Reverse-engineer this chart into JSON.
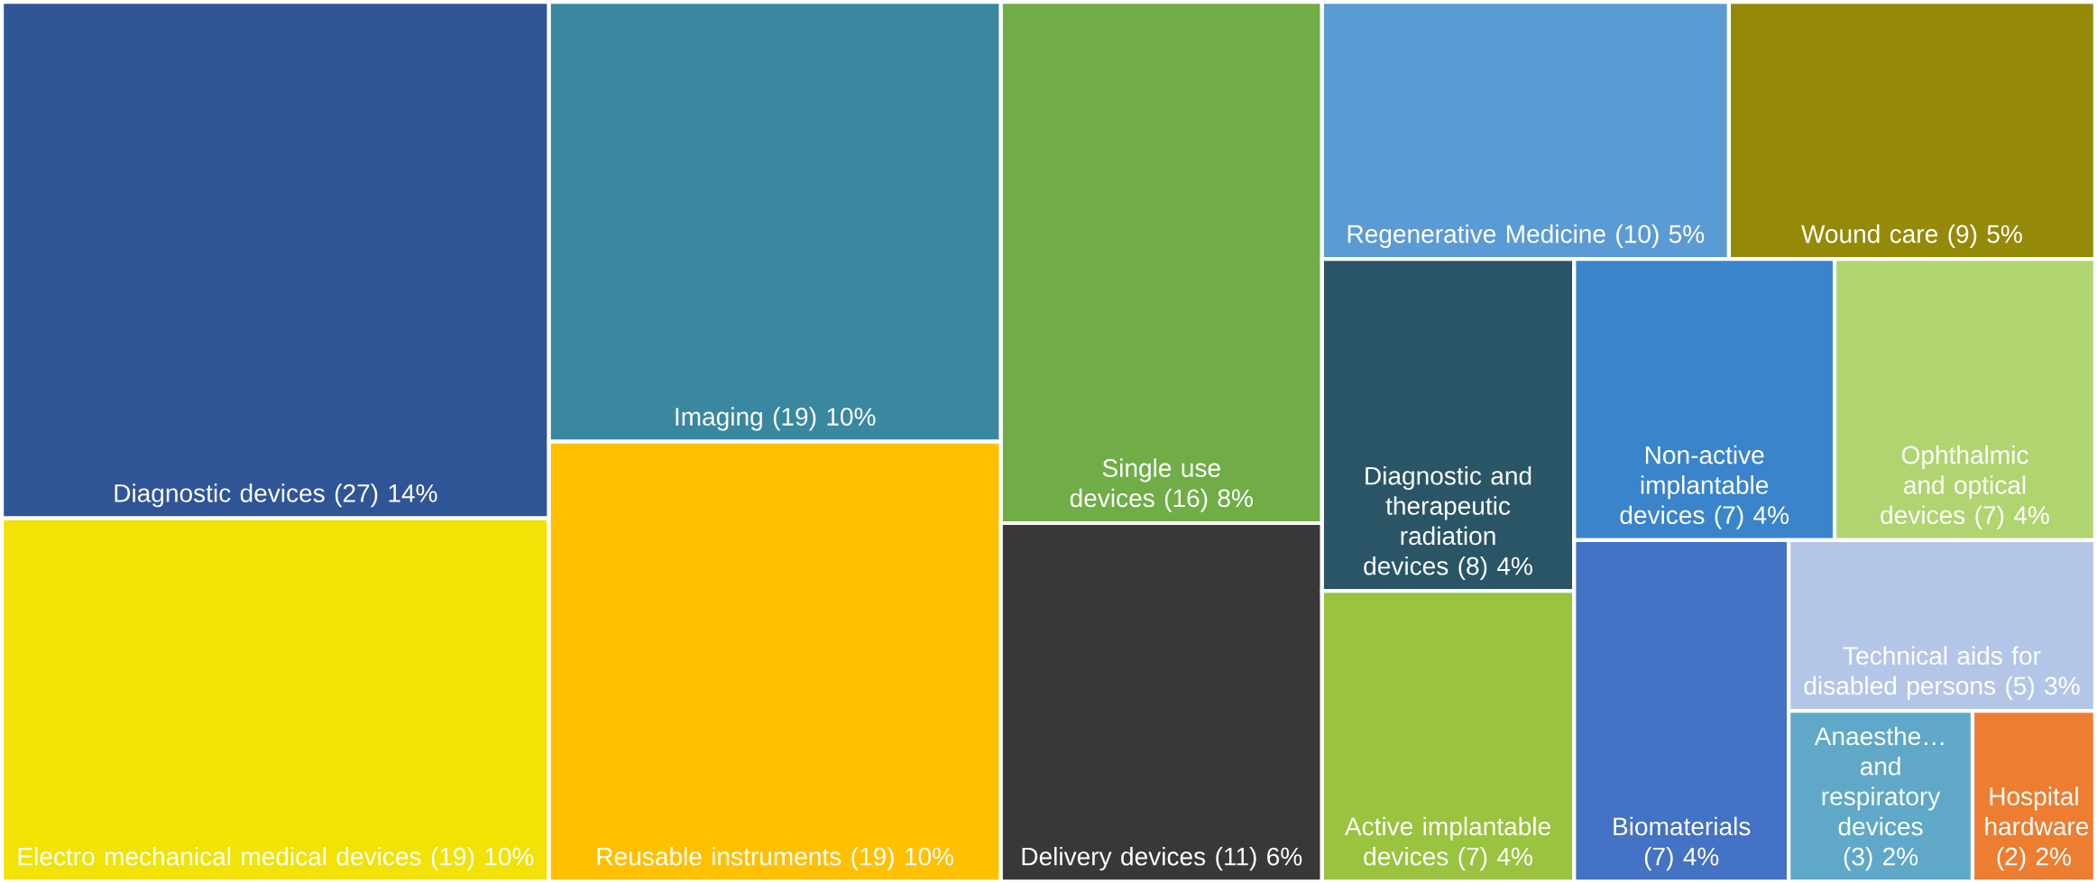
{
  "chart_data": {
    "type": "other",
    "categories": [
      "Diagnostic devices",
      "Electro mechanical medical devices",
      "Imaging",
      "Reusable instruments",
      "Single use devices",
      "Delivery devices",
      "Regenerative Medicine",
      "Wound care",
      "Diagnostic and therapeutic radiation devices",
      "Active implantable devices",
      "Non-active implantable devices",
      "Ophthalmic and optical devices",
      "Biomaterials",
      "Technical aids for disabled persons",
      "Anaesthe… and respiratory devices",
      "Hospital hardware"
    ],
    "values": [
      27,
      19,
      19,
      19,
      16,
      11,
      10,
      9,
      8,
      7,
      7,
      7,
      7,
      5,
      3,
      2
    ],
    "value_labels": [
      "(27) 14%",
      "(19) 10%",
      "(19) 10%",
      "(19) 10%",
      "(16) 8%",
      "(11) 6%",
      "(10) 5%",
      "(9) 5%",
      "(8) 4%",
      "(7) 4%",
      "(7) 4%",
      "(7) 4%",
      "(7) 4%",
      "(5) 3%",
      "(3) 2%",
      "(2) 2%"
    ],
    "colors": [
      "#2f5597",
      "#f2e205",
      "#3a87a0",
      "#ffc000",
      "#70ad47",
      "#383838",
      "#5b9bd5",
      "#958a08",
      "#2a5566",
      "#9ac33f",
      "#3a84cc",
      "#b0d470",
      "#4472c4",
      "#b4c6e7",
      "#5fa8c8",
      "#ed7d31"
    ]
  }
}
